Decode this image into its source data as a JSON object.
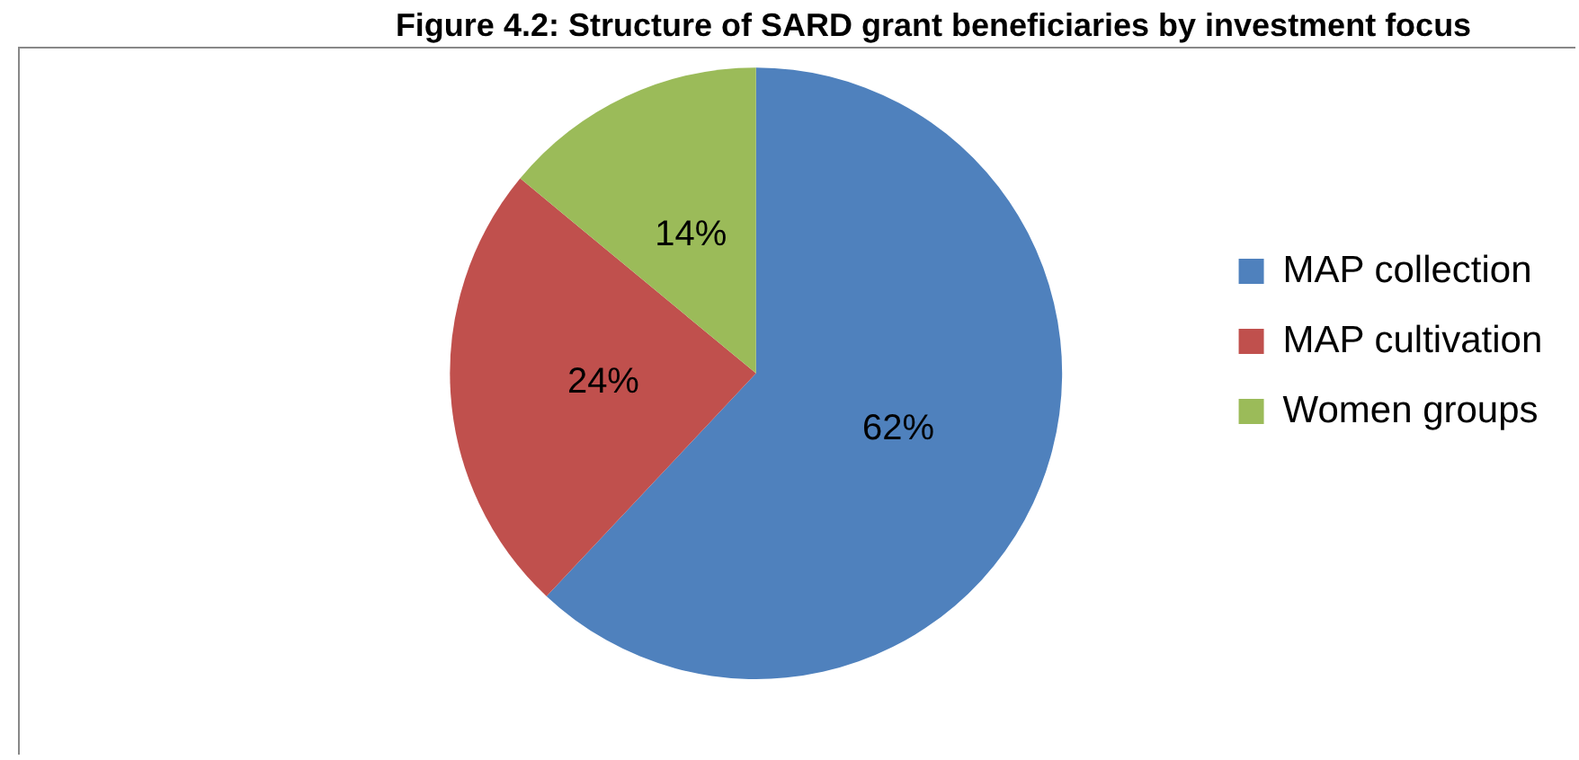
{
  "chart_data": {
    "type": "pie",
    "title": "Figure 4.2: Structure of SARD grant beneficiaries by investment focus",
    "categories": [
      "MAP collection",
      "MAP cultivation",
      "Women groups"
    ],
    "values": [
      62,
      24,
      14
    ],
    "colors": [
      "#4f81bd",
      "#c0504d",
      "#9bbb59"
    ],
    "value_labels": [
      "62%",
      "24%",
      "14%"
    ],
    "legend": "right"
  }
}
